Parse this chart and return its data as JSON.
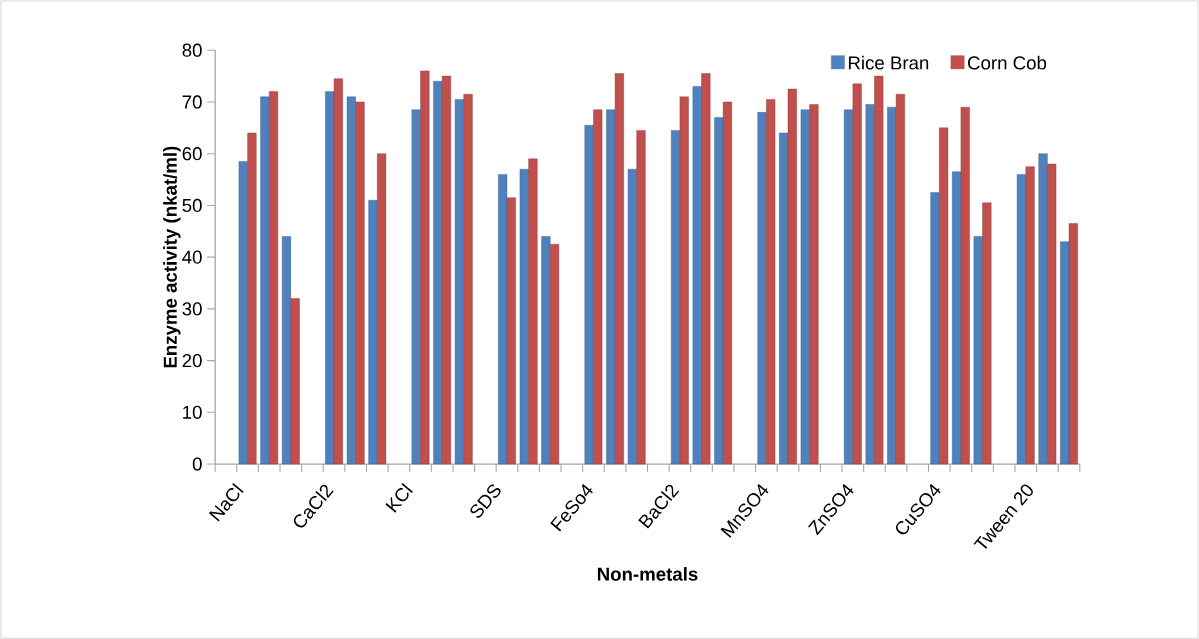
{
  "chart_data": {
    "type": "bar",
    "xlabel": "Non-metals",
    "ylabel": "Enzyme activity (nkat/ml)",
    "categories": [
      "NaCl",
      null,
      null,
      null,
      "CaCl2",
      null,
      null,
      null,
      "KCl",
      null,
      null,
      null,
      "SDS",
      null,
      null,
      null,
      "FeSo4",
      null,
      null,
      null,
      "BaCl2",
      null,
      null,
      null,
      "MnSO4",
      null,
      null,
      null,
      "ZnSO4",
      null,
      null,
      null,
      "CuSO4",
      null,
      null,
      null,
      "Tween 20",
      null,
      null,
      null
    ],
    "series": [
      {
        "name": "Rice Bran",
        "color": "#4f81bd",
        "values": [
          null,
          58.5,
          71,
          44,
          null,
          72,
          71,
          51,
          null,
          68.5,
          74,
          70.5,
          null,
          56,
          57,
          44,
          null,
          65.5,
          68.5,
          57,
          null,
          64.5,
          73,
          67,
          null,
          68,
          64,
          68.5,
          null,
          68.5,
          69.5,
          69,
          null,
          52.5,
          56.5,
          44,
          null,
          56,
          60,
          43
        ]
      },
      {
        "name": "Corn Cob",
        "color": "#c0504d",
        "values": [
          null,
          64,
          72,
          32,
          null,
          74.5,
          70,
          60,
          null,
          76,
          75,
          71.5,
          null,
          51.5,
          59,
          42.5,
          null,
          68.5,
          75.5,
          64.5,
          null,
          71,
          75.5,
          70,
          null,
          70.5,
          72.5,
          69.5,
          null,
          73.5,
          75,
          71.5,
          null,
          65,
          69,
          50.5,
          null,
          57.5,
          58,
          46.5
        ]
      }
    ],
    "ylim": [
      0,
      80
    ],
    "yticks": [
      0,
      10,
      20,
      30,
      40,
      50,
      60,
      70,
      80
    ],
    "legend": "top right"
  }
}
